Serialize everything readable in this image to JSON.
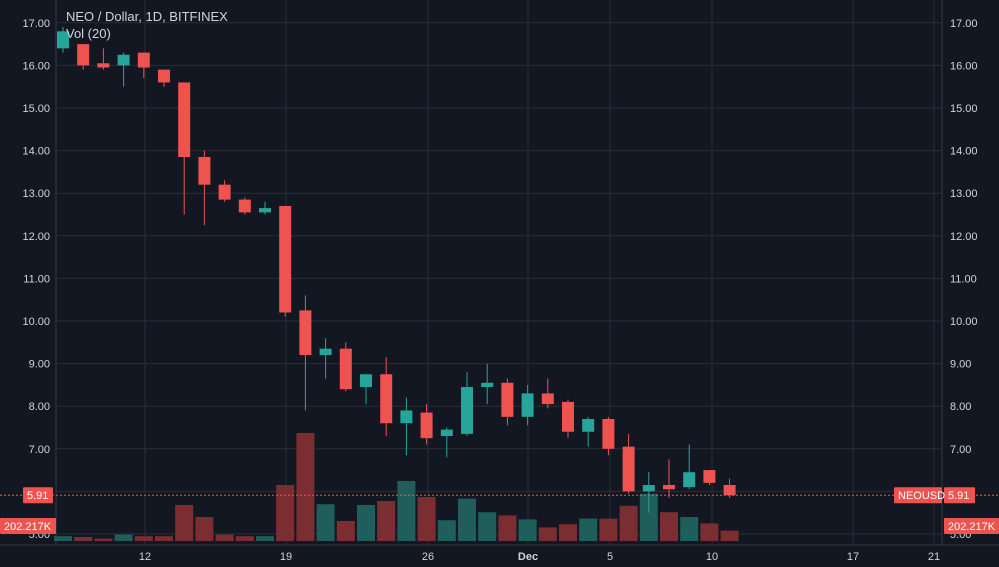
{
  "header": {
    "symbol_title": "NEO / Dollar, 1D, BITFINEX",
    "volume_label": "Vol (20)"
  },
  "colors": {
    "background": "#131722",
    "grid": "#2a2e39",
    "up": "#26a69a",
    "down": "#ef5350",
    "up_volume": "#1f5e5b",
    "down_volume": "#7a2e31",
    "text": "#d1d4dc",
    "price_line": "#ef5350"
  },
  "price_tag": {
    "symbol": "NEOUSD",
    "value": "5.91",
    "price": 5.91
  },
  "volume_tag": {
    "value": "202.217K"
  },
  "chart_data": {
    "type": "candlestick",
    "title": "NEO / Dollar, 1D, BITFINEX",
    "y_ticks": [
      "17.00",
      "16.00",
      "15.00",
      "14.00",
      "13.00",
      "12.00",
      "11.00",
      "10.00",
      "9.00",
      "8.00",
      "7.00",
      "5.91",
      "5.00"
    ],
    "x_ticks": [
      "12",
      "19",
      "26",
      "Dec",
      "5",
      "10",
      "17",
      "21"
    ],
    "grid": true,
    "candles": [
      {
        "o": 16.4,
        "h": 16.9,
        "l": 16.3,
        "c": 16.8
      },
      {
        "o": 16.5,
        "h": 16.5,
        "l": 15.9,
        "c": 16.0
      },
      {
        "o": 16.05,
        "h": 16.4,
        "l": 15.9,
        "c": 15.95
      },
      {
        "o": 16.0,
        "h": 16.3,
        "l": 15.5,
        "c": 16.25
      },
      {
        "o": 16.3,
        "h": 16.3,
        "l": 15.7,
        "c": 15.95
      },
      {
        "o": 15.9,
        "h": 15.9,
        "l": 15.5,
        "c": 15.6
      },
      {
        "o": 15.6,
        "h": 15.6,
        "l": 12.5,
        "c": 13.85
      },
      {
        "o": 13.85,
        "h": 14.0,
        "l": 12.25,
        "c": 13.2
      },
      {
        "o": 13.2,
        "h": 13.3,
        "l": 12.8,
        "c": 12.85
      },
      {
        "o": 12.85,
        "h": 12.9,
        "l": 12.5,
        "c": 12.55
      },
      {
        "o": 12.55,
        "h": 12.8,
        "l": 12.5,
        "c": 12.65
      },
      {
        "o": 12.7,
        "h": 12.7,
        "l": 10.1,
        "c": 10.2
      },
      {
        "o": 10.25,
        "h": 10.6,
        "l": 7.9,
        "c": 9.2
      },
      {
        "o": 9.2,
        "h": 9.6,
        "l": 8.65,
        "c": 9.35
      },
      {
        "o": 9.35,
        "h": 9.5,
        "l": 8.35,
        "c": 8.4
      },
      {
        "o": 8.45,
        "h": 8.75,
        "l": 8.05,
        "c": 8.75
      },
      {
        "o": 8.75,
        "h": 9.15,
        "l": 7.3,
        "c": 7.6
      },
      {
        "o": 7.6,
        "h": 8.2,
        "l": 6.85,
        "c": 7.9
      },
      {
        "o": 7.85,
        "h": 8.05,
        "l": 7.1,
        "c": 7.25
      },
      {
        "o": 7.3,
        "h": 7.5,
        "l": 6.8,
        "c": 7.45
      },
      {
        "o": 7.35,
        "h": 8.8,
        "l": 7.3,
        "c": 8.45
      },
      {
        "o": 8.45,
        "h": 9.0,
        "l": 8.05,
        "c": 8.55
      },
      {
        "o": 8.55,
        "h": 8.65,
        "l": 7.55,
        "c": 7.75
      },
      {
        "o": 7.75,
        "h": 8.5,
        "l": 7.55,
        "c": 8.3
      },
      {
        "o": 8.3,
        "h": 8.65,
        "l": 7.95,
        "c": 8.05
      },
      {
        "o": 8.1,
        "h": 8.15,
        "l": 7.25,
        "c": 7.4
      },
      {
        "o": 7.4,
        "h": 7.75,
        "l": 7.05,
        "c": 7.7
      },
      {
        "o": 7.7,
        "h": 7.75,
        "l": 6.85,
        "c": 7.0
      },
      {
        "o": 7.05,
        "h": 7.35,
        "l": 5.95,
        "c": 6.0
      },
      {
        "o": 6.0,
        "h": 6.45,
        "l": 5.5,
        "c": 6.15
      },
      {
        "o": 6.15,
        "h": 6.75,
        "l": 5.85,
        "c": 6.05
      },
      {
        "o": 6.1,
        "h": 7.1,
        "l": 6.05,
        "c": 6.45
      },
      {
        "o": 6.5,
        "h": 6.5,
        "l": 6.15,
        "c": 6.2
      },
      {
        "o": 6.15,
        "h": 6.3,
        "l": 5.85,
        "c": 5.91
      }
    ],
    "volume": [
      0.6,
      0.5,
      0.3,
      0.8,
      0.6,
      0.6,
      4.5,
      3.0,
      0.8,
      0.6,
      0.6,
      7.0,
      13.5,
      4.6,
      2.5,
      4.5,
      5.0,
      7.5,
      5.5,
      2.6,
      5.3,
      3.6,
      3.2,
      2.7,
      1.7,
      2.1,
      2.8,
      2.8,
      4.4,
      5.9,
      3.6,
      3.0,
      2.2,
      1.3
    ],
    "volume_unit": "relative"
  }
}
